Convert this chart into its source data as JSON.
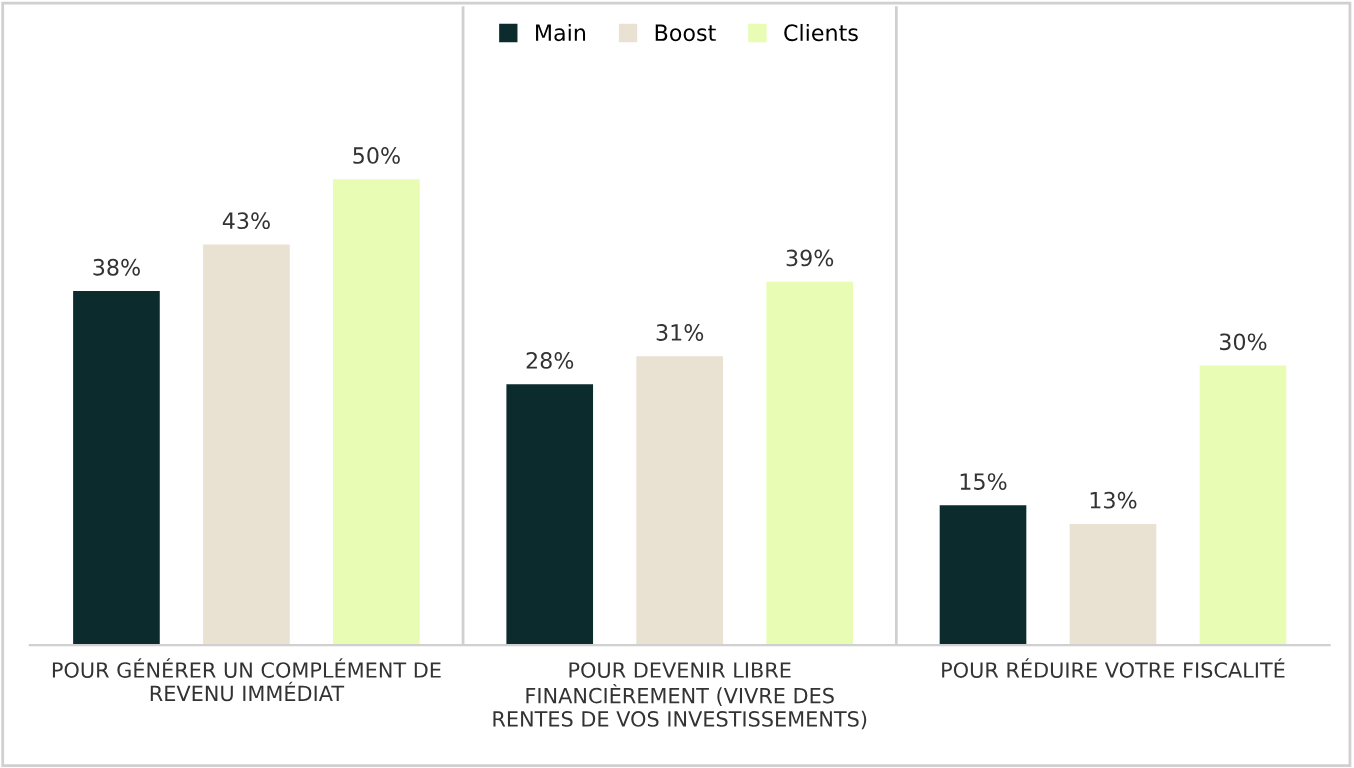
{
  "chart_data": {
    "type": "bar",
    "categories": [
      "POUR GÉNÉRER UN COMPLÉMENT DE\nREVENU IMMÉDIAT",
      "POUR DEVENIR LIBRE\nFINANCIÈREMENT (VIVRE DES\nRENTES DE VOS INVESTISSEMENTS)",
      "POUR RÉDUIRE VOTRE FISCALITÉ"
    ],
    "series": [
      {
        "name": "Main",
        "color": "#0c2b2d",
        "values": [
          38,
          28,
          15
        ],
        "value_labels": [
          "38%",
          "28%",
          "15%"
        ]
      },
      {
        "name": "Boost",
        "color": "#e9e1d2",
        "values": [
          43,
          31,
          13
        ],
        "value_labels": [
          "43%",
          "31%",
          "13%"
        ]
      },
      {
        "name": "Clients",
        "color": "#e8fcb4",
        "values": [
          50,
          39,
          30
        ],
        "value_labels": [
          "50%",
          "39%",
          "30%"
        ]
      }
    ],
    "legend": "top",
    "grid": false
  }
}
